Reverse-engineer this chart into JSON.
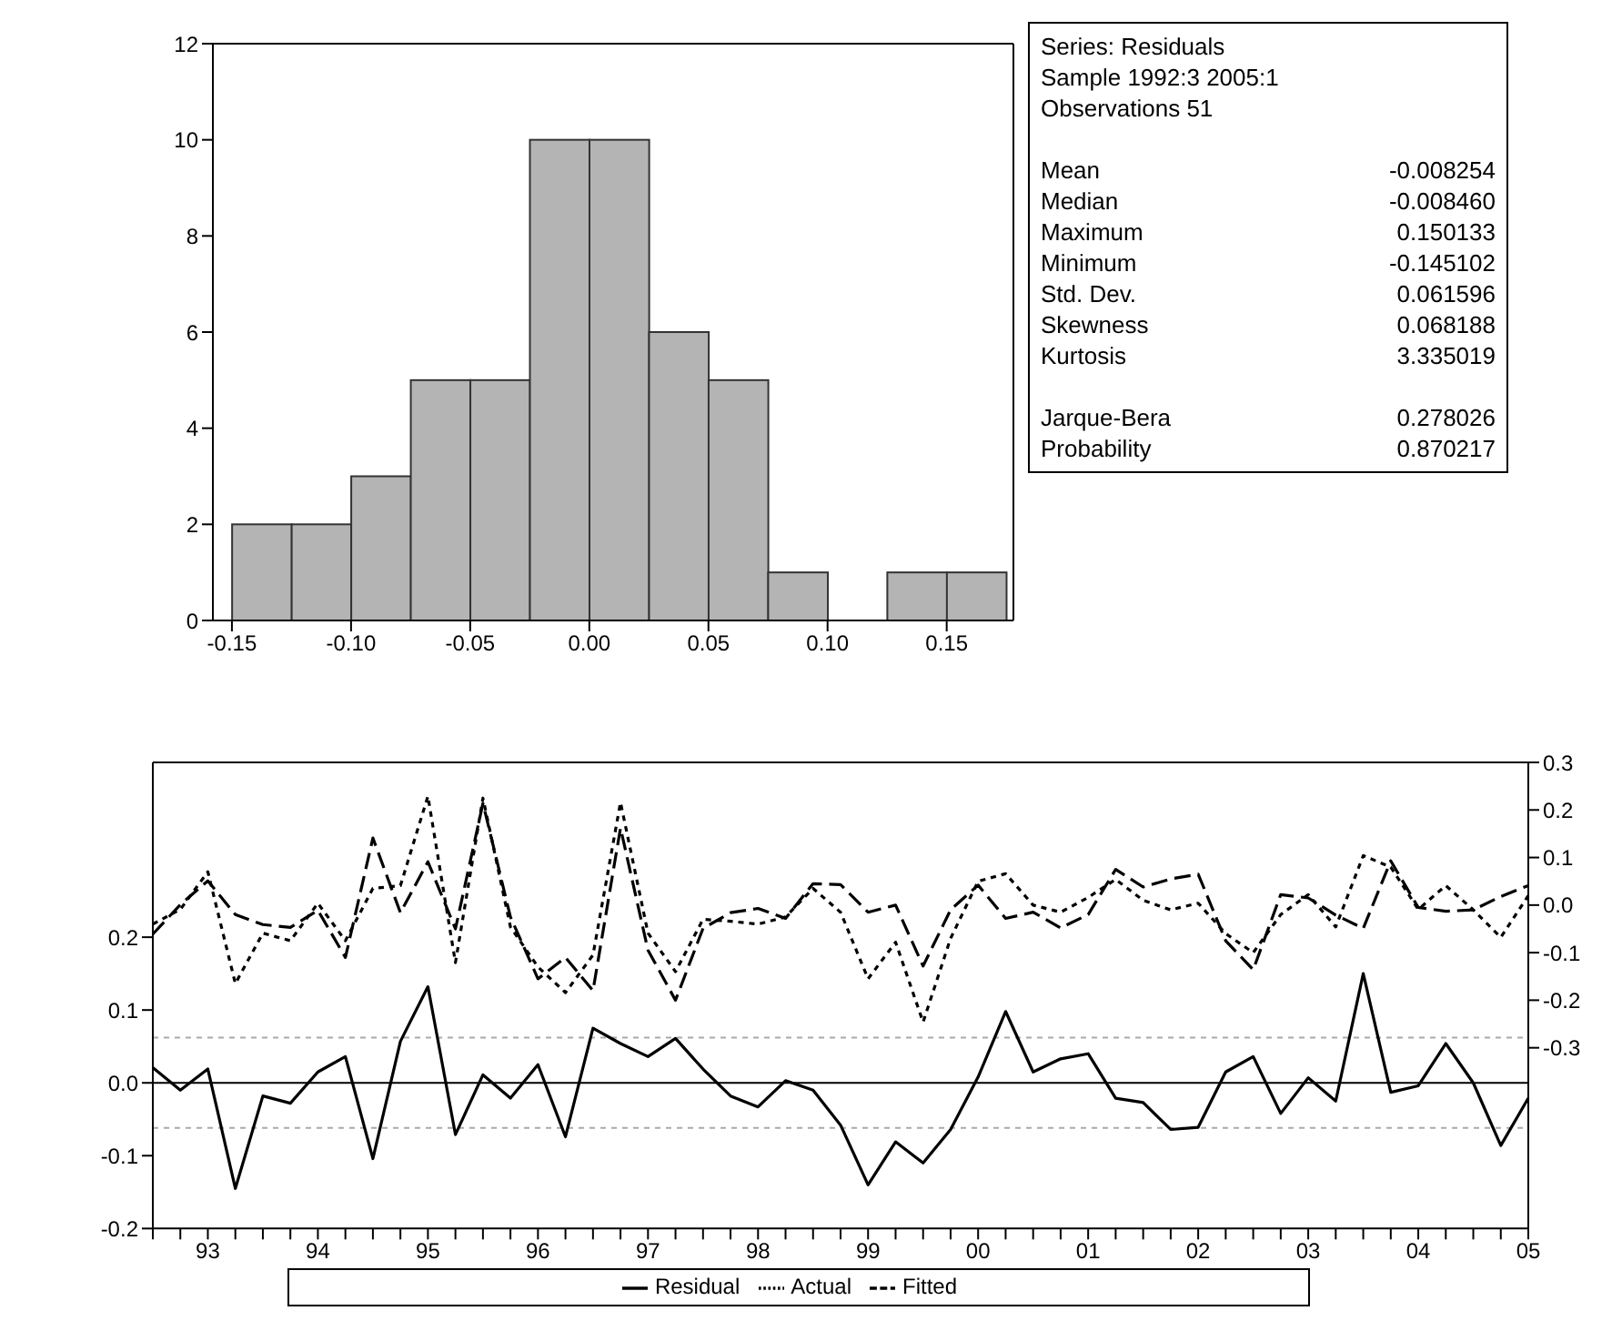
{
  "chart_data": [
    {
      "type": "histogram",
      "bins": [
        -0.15,
        -0.125,
        -0.1,
        -0.075,
        -0.05,
        -0.025,
        0,
        0.025,
        0.05,
        0.075,
        0.1,
        0.125,
        0.15,
        0.175
      ],
      "values": [
        2,
        2,
        3,
        5,
        5,
        10,
        10,
        6,
        5,
        1,
        0,
        1,
        1
      ],
      "color": "#b4b4b4",
      "xlim": [
        -0.158,
        0.178
      ],
      "ylim": [
        0,
        12
      ],
      "xticks": [
        {
          "value": -0.15,
          "label": "-0.15"
        },
        {
          "value": -0.1,
          "label": "-0.10"
        },
        {
          "value": -0.05,
          "label": "-0.05"
        },
        {
          "value": 0,
          "label": "0.00"
        },
        {
          "value": 0.05,
          "label": "0.05"
        },
        {
          "value": 0.1,
          "label": "0.10"
        },
        {
          "value": 0.15,
          "label": "0.15"
        }
      ],
      "yticks": [
        0,
        2,
        4,
        6,
        8,
        10,
        12
      ]
    },
    {
      "type": "other",
      "annotations": [
        "Series: Residuals",
        "Sample 1992:3 2005:1",
        "Observations 51"
      ],
      "categories": [
        "Mean",
        "Median",
        "Maximum",
        "Minimum",
        "Std. Dev.",
        "Skewness",
        "Kurtosis",
        "Jarque-Bera",
        "Probability"
      ],
      "value_labels": [
        "-0.008254",
        "-0.008460",
        "0.150133",
        "-0.145102",
        "0.061596",
        "0.068188",
        "3.335019",
        "0.278026",
        "0.870217"
      ]
    },
    {
      "type": "line",
      "categories": [
        null,
        null,
        "93",
        null,
        null,
        null,
        "94",
        null,
        null,
        null,
        "95",
        null,
        null,
        null,
        "96",
        null,
        null,
        null,
        "97",
        null,
        null,
        null,
        "98",
        null,
        null,
        null,
        "99",
        null,
        null,
        null,
        "00",
        null,
        null,
        null,
        "01",
        null,
        null,
        null,
        "02",
        null,
        null,
        null,
        "03",
        null,
        null,
        null,
        "04",
        null,
        null,
        null,
        "05"
      ],
      "series": [
        {
          "name": "Residual",
          "color": "#000000",
          "line_style": "solid",
          "values": [
            0.021,
            -0.01,
            0.019,
            -0.145,
            -0.018,
            -0.028,
            0.015,
            0.036,
            -0.104,
            0.057,
            0.132,
            -0.071,
            0.011,
            -0.021,
            0.025,
            -0.074,
            0.075,
            0.054,
            0.036,
            0.061,
            0.019,
            -0.018,
            -0.033,
            0.003,
            -0.01,
            -0.058,
            -0.14,
            -0.081,
            -0.11,
            -0.064,
            0.008,
            0.098,
            0.015,
            0.033,
            0.04,
            -0.021,
            -0.027,
            -0.064,
            -0.061,
            0.015,
            0.036,
            -0.042,
            0.007,
            -0.025,
            0.15,
            -0.013,
            -0.004,
            0.054,
            0,
            -0.086,
            -0.021
          ]
        },
        {
          "name": "Actual",
          "color": "#000000",
          "line_style": "dotted",
          "axis": "y2",
          "values": [
            -0.04,
            -0.009,
            0.07,
            -0.165,
            -0.059,
            -0.075,
            0.004,
            -0.075,
            0.035,
            0.041,
            0.229,
            -0.121,
            0.225,
            -0.046,
            -0.13,
            -0.184,
            -0.105,
            0.216,
            -0.059,
            -0.14,
            -0.03,
            -0.034,
            -0.04,
            -0.025,
            0.035,
            -0.015,
            -0.155,
            -0.078,
            -0.246,
            -0.07,
            0.05,
            0.066,
            0,
            -0.015,
            0.016,
            0.054,
            0.01,
            -0.01,
            0.004,
            -0.06,
            -0.1,
            -0.02,
            0.022,
            -0.046,
            0.104,
            0.08,
            -0.009,
            0.041,
            -0.01,
            -0.068,
            0.02
          ]
        },
        {
          "name": "Fitted",
          "color": "#000000",
          "line_style": "dashed",
          "axis": "y2",
          "values": [
            -0.061,
            0.001,
            0.051,
            -0.02,
            -0.041,
            -0.047,
            -0.011,
            -0.11,
            0.141,
            -0.016,
            0.091,
            -0.05,
            0.214,
            -0.025,
            -0.155,
            -0.11,
            -0.18,
            0.162,
            -0.095,
            -0.2,
            -0.049,
            -0.016,
            -0.007,
            -0.028,
            0.045,
            0.043,
            -0.015,
            0,
            -0.128,
            -0.01,
            0.042,
            -0.028,
            -0.015,
            -0.048,
            -0.02,
            0.075,
            0.038,
            0.055,
            0.065,
            -0.075,
            -0.136,
            0.022,
            0.015,
            -0.021,
            -0.049,
            0.093,
            -0.005,
            -0.013,
            -0.01,
            0.018,
            0.041
          ]
        }
      ],
      "ylim": [
        -0.2,
        0.44
      ],
      "yticks": [
        -0.2,
        -0.1,
        {
          "value": 0,
          "label": "0.0"
        },
        0.1,
        0.2
      ],
      "y2lim": [
        -0.68,
        0.3
      ],
      "y2ticks": [
        -0.3,
        -0.2,
        -0.1,
        {
          "value": 0,
          "label": "0.0"
        },
        0.1,
        0.2,
        0.3
      ],
      "ref_lines": [
        {
          "axis": "y",
          "value": 0,
          "color": "#000000",
          "line_style": "solid"
        },
        {
          "axis": "y",
          "value": 0.062,
          "color": "#aaaaaa",
          "line_style": "dotted"
        },
        {
          "axis": "y",
          "value": -0.062,
          "color": "#aaaaaa",
          "line_style": "dotted"
        }
      ],
      "legend": "bottom"
    }
  ]
}
